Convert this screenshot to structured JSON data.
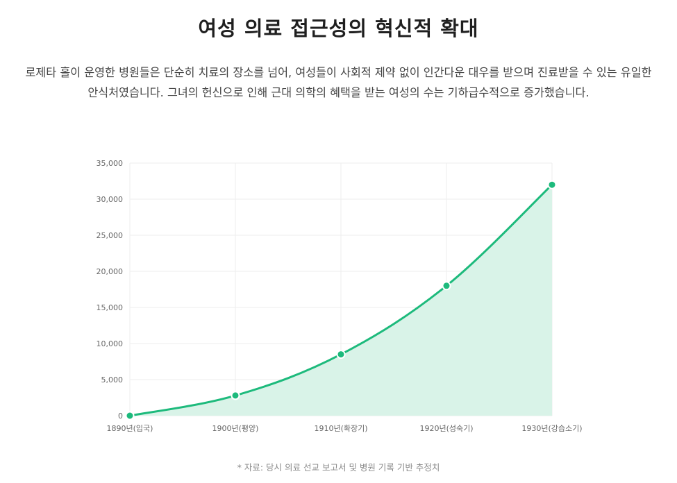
{
  "page": {
    "title": "여성 의료 접근성의 혁신적 확대",
    "description": "로제타 홀이 운영한 병원들은 단순히 치료의 장소를 넘어, 여성들이 사회적 제약 없이 인간다운 대우를 받으며 진료받을 수 있는 유일한 안식처였습니다. 그녀의 헌신으로 인해 근대 의학의 혜택을 받는 여성의 수는 기하급수적으로 증가했습니다.",
    "source_note": "* 자료: 당시 의료 선교 보고서 및 병원 기록 기반 추정치"
  },
  "chart_data": {
    "type": "area",
    "title": "",
    "xlabel": "",
    "ylabel": "",
    "categories": [
      "1890년(입국)",
      "1900년(평양)",
      "1910년(확장기)",
      "1920년(성숙기)",
      "1930년(강습소기)"
    ],
    "series": [
      {
        "values": [
          0,
          2800,
          8500,
          18000,
          32000
        ]
      }
    ],
    "ylim": [
      0,
      35000
    ],
    "yticks": [
      "0",
      "5,000",
      "10,000",
      "15,000",
      "20,000",
      "25,000",
      "30,000",
      "35,000"
    ],
    "grid": true,
    "legend": "none",
    "colors": {
      "line": "#1dba7c",
      "fill": "#d9f3e8",
      "grid": "#eeeeee",
      "axis_text": "#666666"
    }
  }
}
